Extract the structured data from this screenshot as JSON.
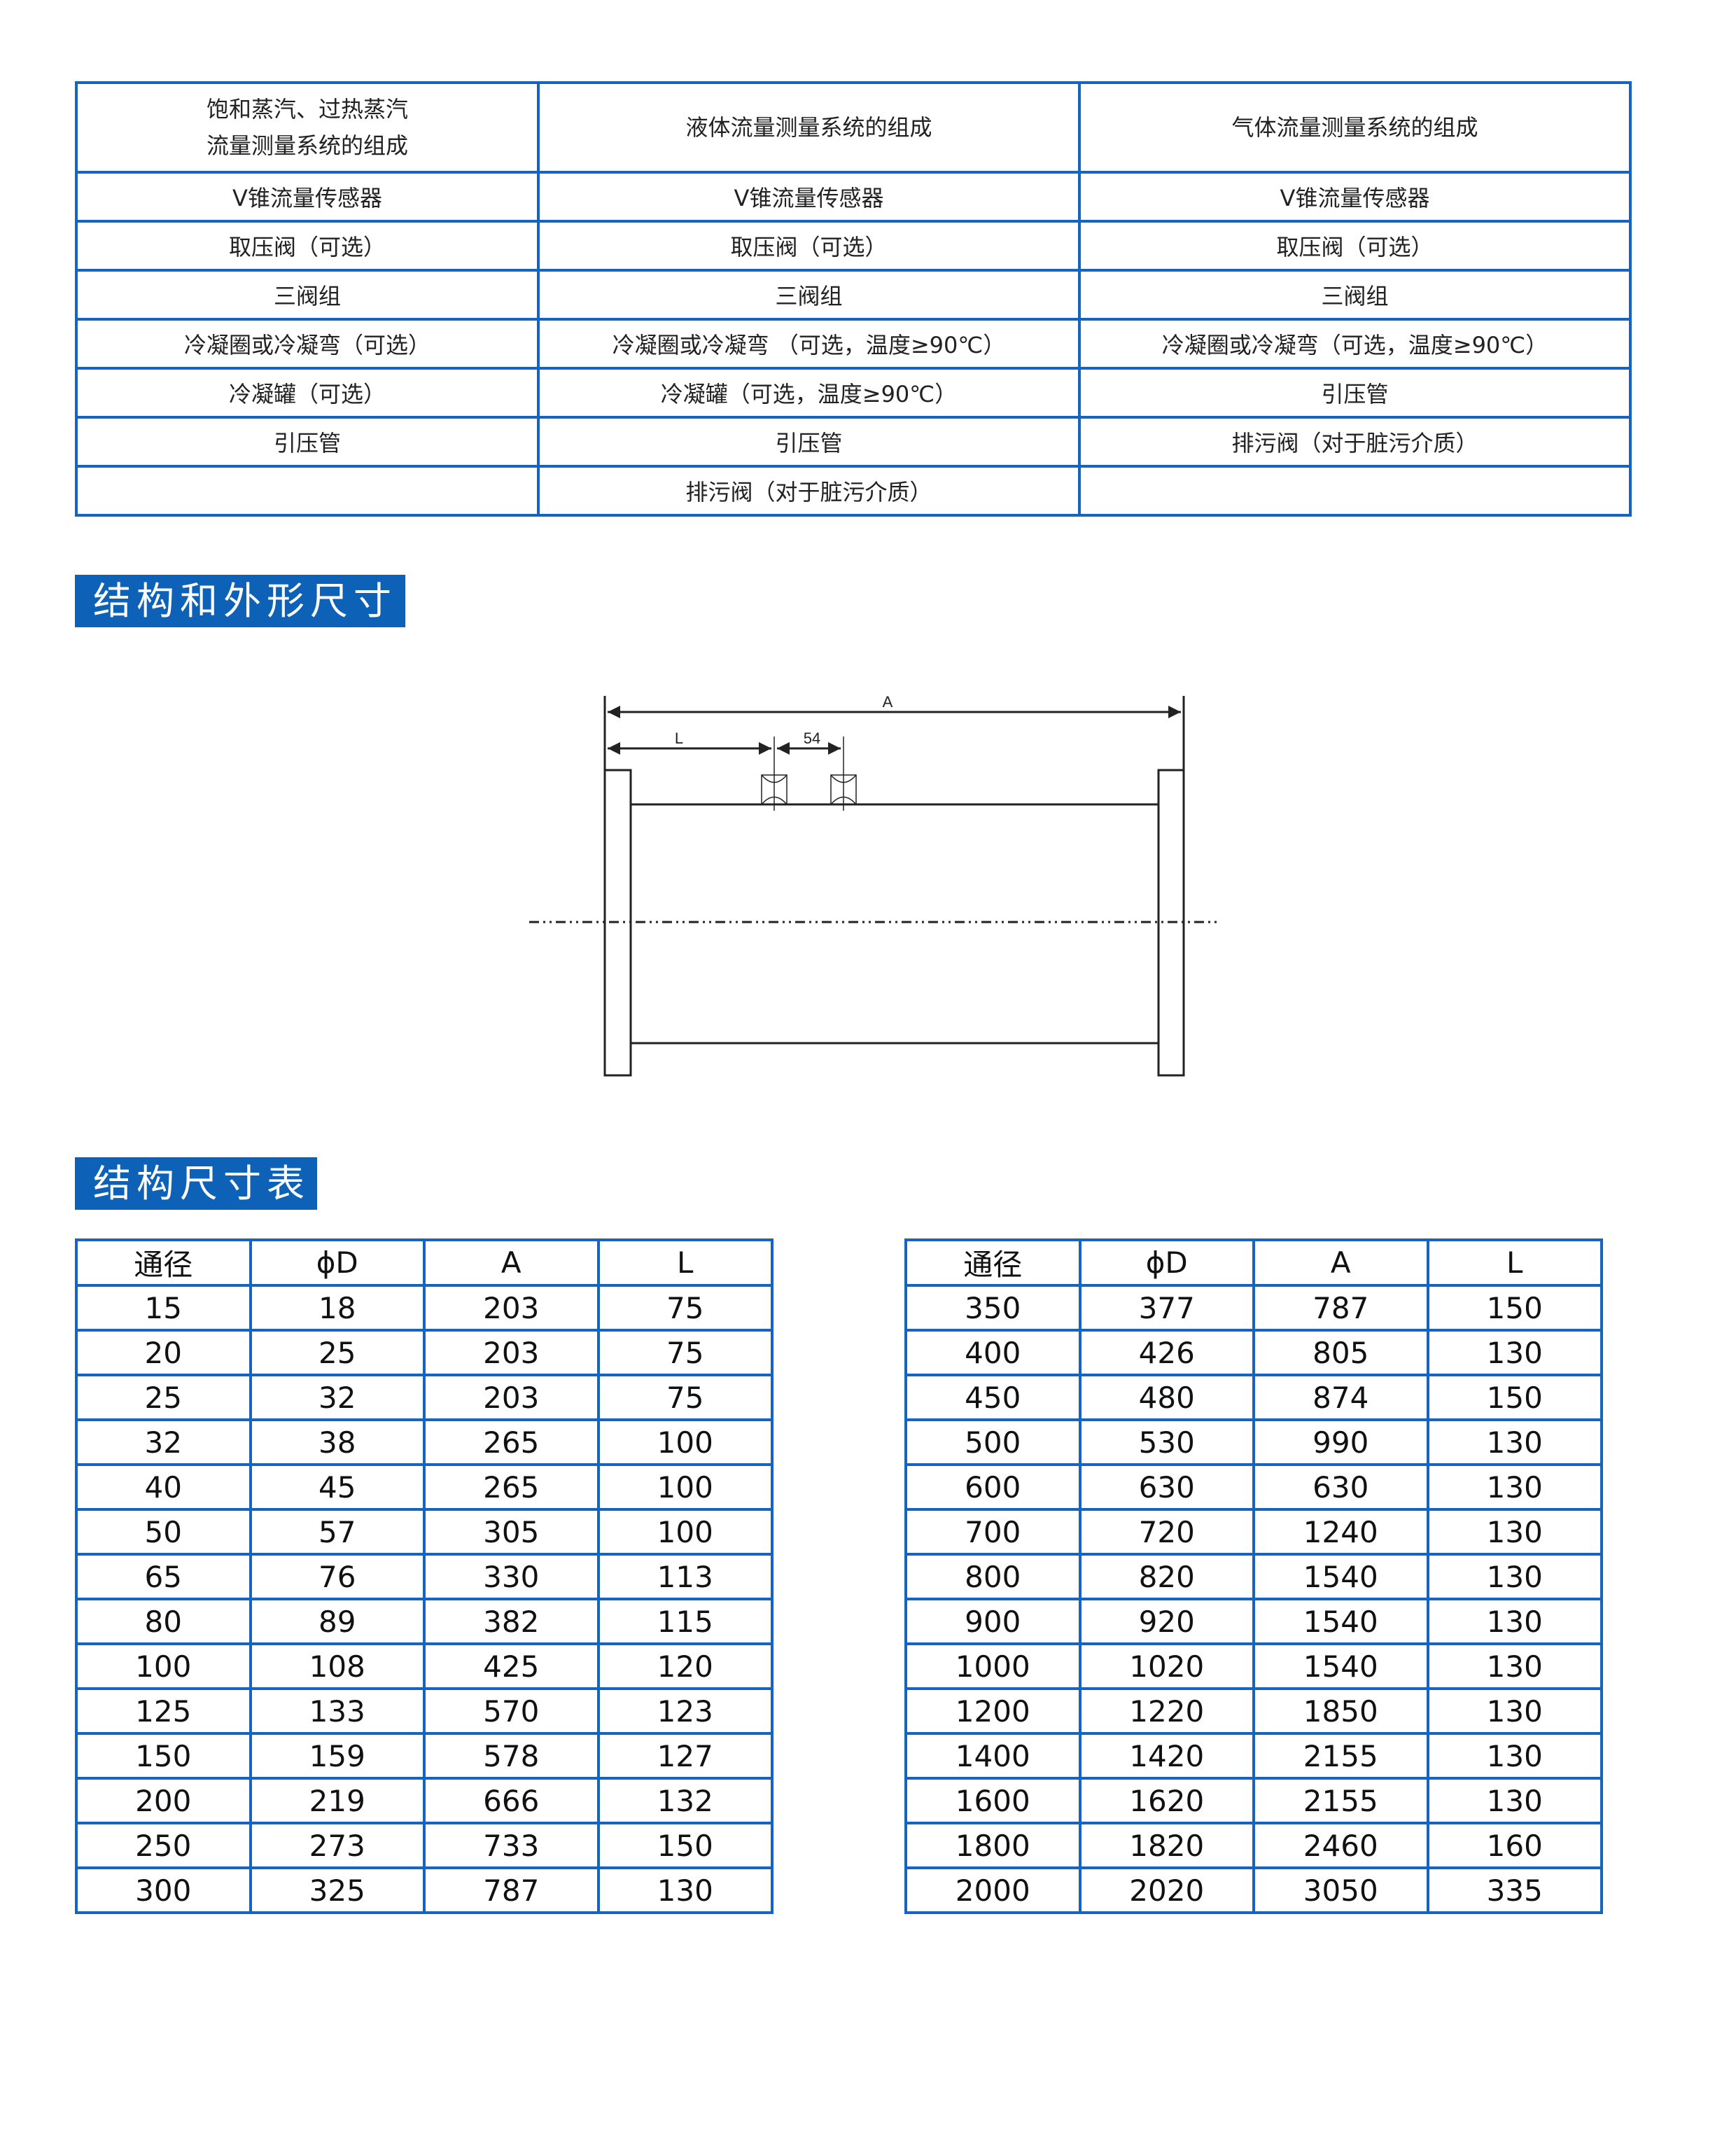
{
  "composition_table": {
    "headers": [
      "饱和蒸汽、过热蒸汽\n流量测量系统的组成",
      "液体流量测量系统的组成",
      "气体流量测量系统的组成"
    ],
    "rows": [
      [
        "V锥流量传感器",
        "V锥流量传感器",
        "V锥流量传感器"
      ],
      [
        "取压阀（可选）",
        "取压阀（可选）",
        "取压阀（可选）"
      ],
      [
        "三阀组",
        "三阀组",
        "三阀组"
      ],
      [
        "冷凝圈或冷凝弯（可选）",
        "冷凝圈或冷凝弯 （可选，温度≥90℃）",
        "冷凝圈或冷凝弯（可选，温度≥90℃）"
      ],
      [
        "冷凝罐（可选）",
        "冷凝罐（可选，温度≥90℃）",
        "引压管"
      ],
      [
        "引压管",
        "引压管",
        "排污阀（对于脏污介质）"
      ],
      [
        "",
        "排污阀（对于脏污介质）",
        ""
      ]
    ]
  },
  "section1_title": "结构和外形尺寸",
  "drawing": {
    "label_a": "A",
    "label_l": "L",
    "label_54": "54"
  },
  "section2_title": "结构尺寸表",
  "dimension_headers": [
    "通径",
    "ϕD",
    "A",
    "L"
  ],
  "dimension_left": [
    [
      "15",
      "18",
      "203",
      "75"
    ],
    [
      "20",
      "25",
      "203",
      "75"
    ],
    [
      "25",
      "32",
      "203",
      "75"
    ],
    [
      "32",
      "38",
      "265",
      "100"
    ],
    [
      "40",
      "45",
      "265",
      "100"
    ],
    [
      "50",
      "57",
      "305",
      "100"
    ],
    [
      "65",
      "76",
      "330",
      "113"
    ],
    [
      "80",
      "89",
      "382",
      "115"
    ],
    [
      "100",
      "108",
      "425",
      "120"
    ],
    [
      "125",
      "133",
      "570",
      "123"
    ],
    [
      "150",
      "159",
      "578",
      "127"
    ],
    [
      "200",
      "219",
      "666",
      "132"
    ],
    [
      "250",
      "273",
      "733",
      "150"
    ],
    [
      "300",
      "325",
      "787",
      "130"
    ]
  ],
  "dimension_right": [
    [
      "350",
      "377",
      "787",
      "150"
    ],
    [
      "400",
      "426",
      "805",
      "130"
    ],
    [
      "450",
      "480",
      "874",
      "150"
    ],
    [
      "500",
      "530",
      "990",
      "130"
    ],
    [
      "600",
      "630",
      "630",
      "130"
    ],
    [
      "700",
      "720",
      "1240",
      "130"
    ],
    [
      "800",
      "820",
      "1540",
      "130"
    ],
    [
      "900",
      "920",
      "1540",
      "130"
    ],
    [
      "1000",
      "1020",
      "1540",
      "130"
    ],
    [
      "1200",
      "1220",
      "1850",
      "130"
    ],
    [
      "1400",
      "1420",
      "2155",
      "130"
    ],
    [
      "1600",
      "1620",
      "2155",
      "130"
    ],
    [
      "1800",
      "1820",
      "2460",
      "160"
    ],
    [
      "2000",
      "2020",
      "3050",
      "335"
    ]
  ],
  "colors": {
    "accent": "#0d62b8",
    "border": "#1565c0"
  }
}
